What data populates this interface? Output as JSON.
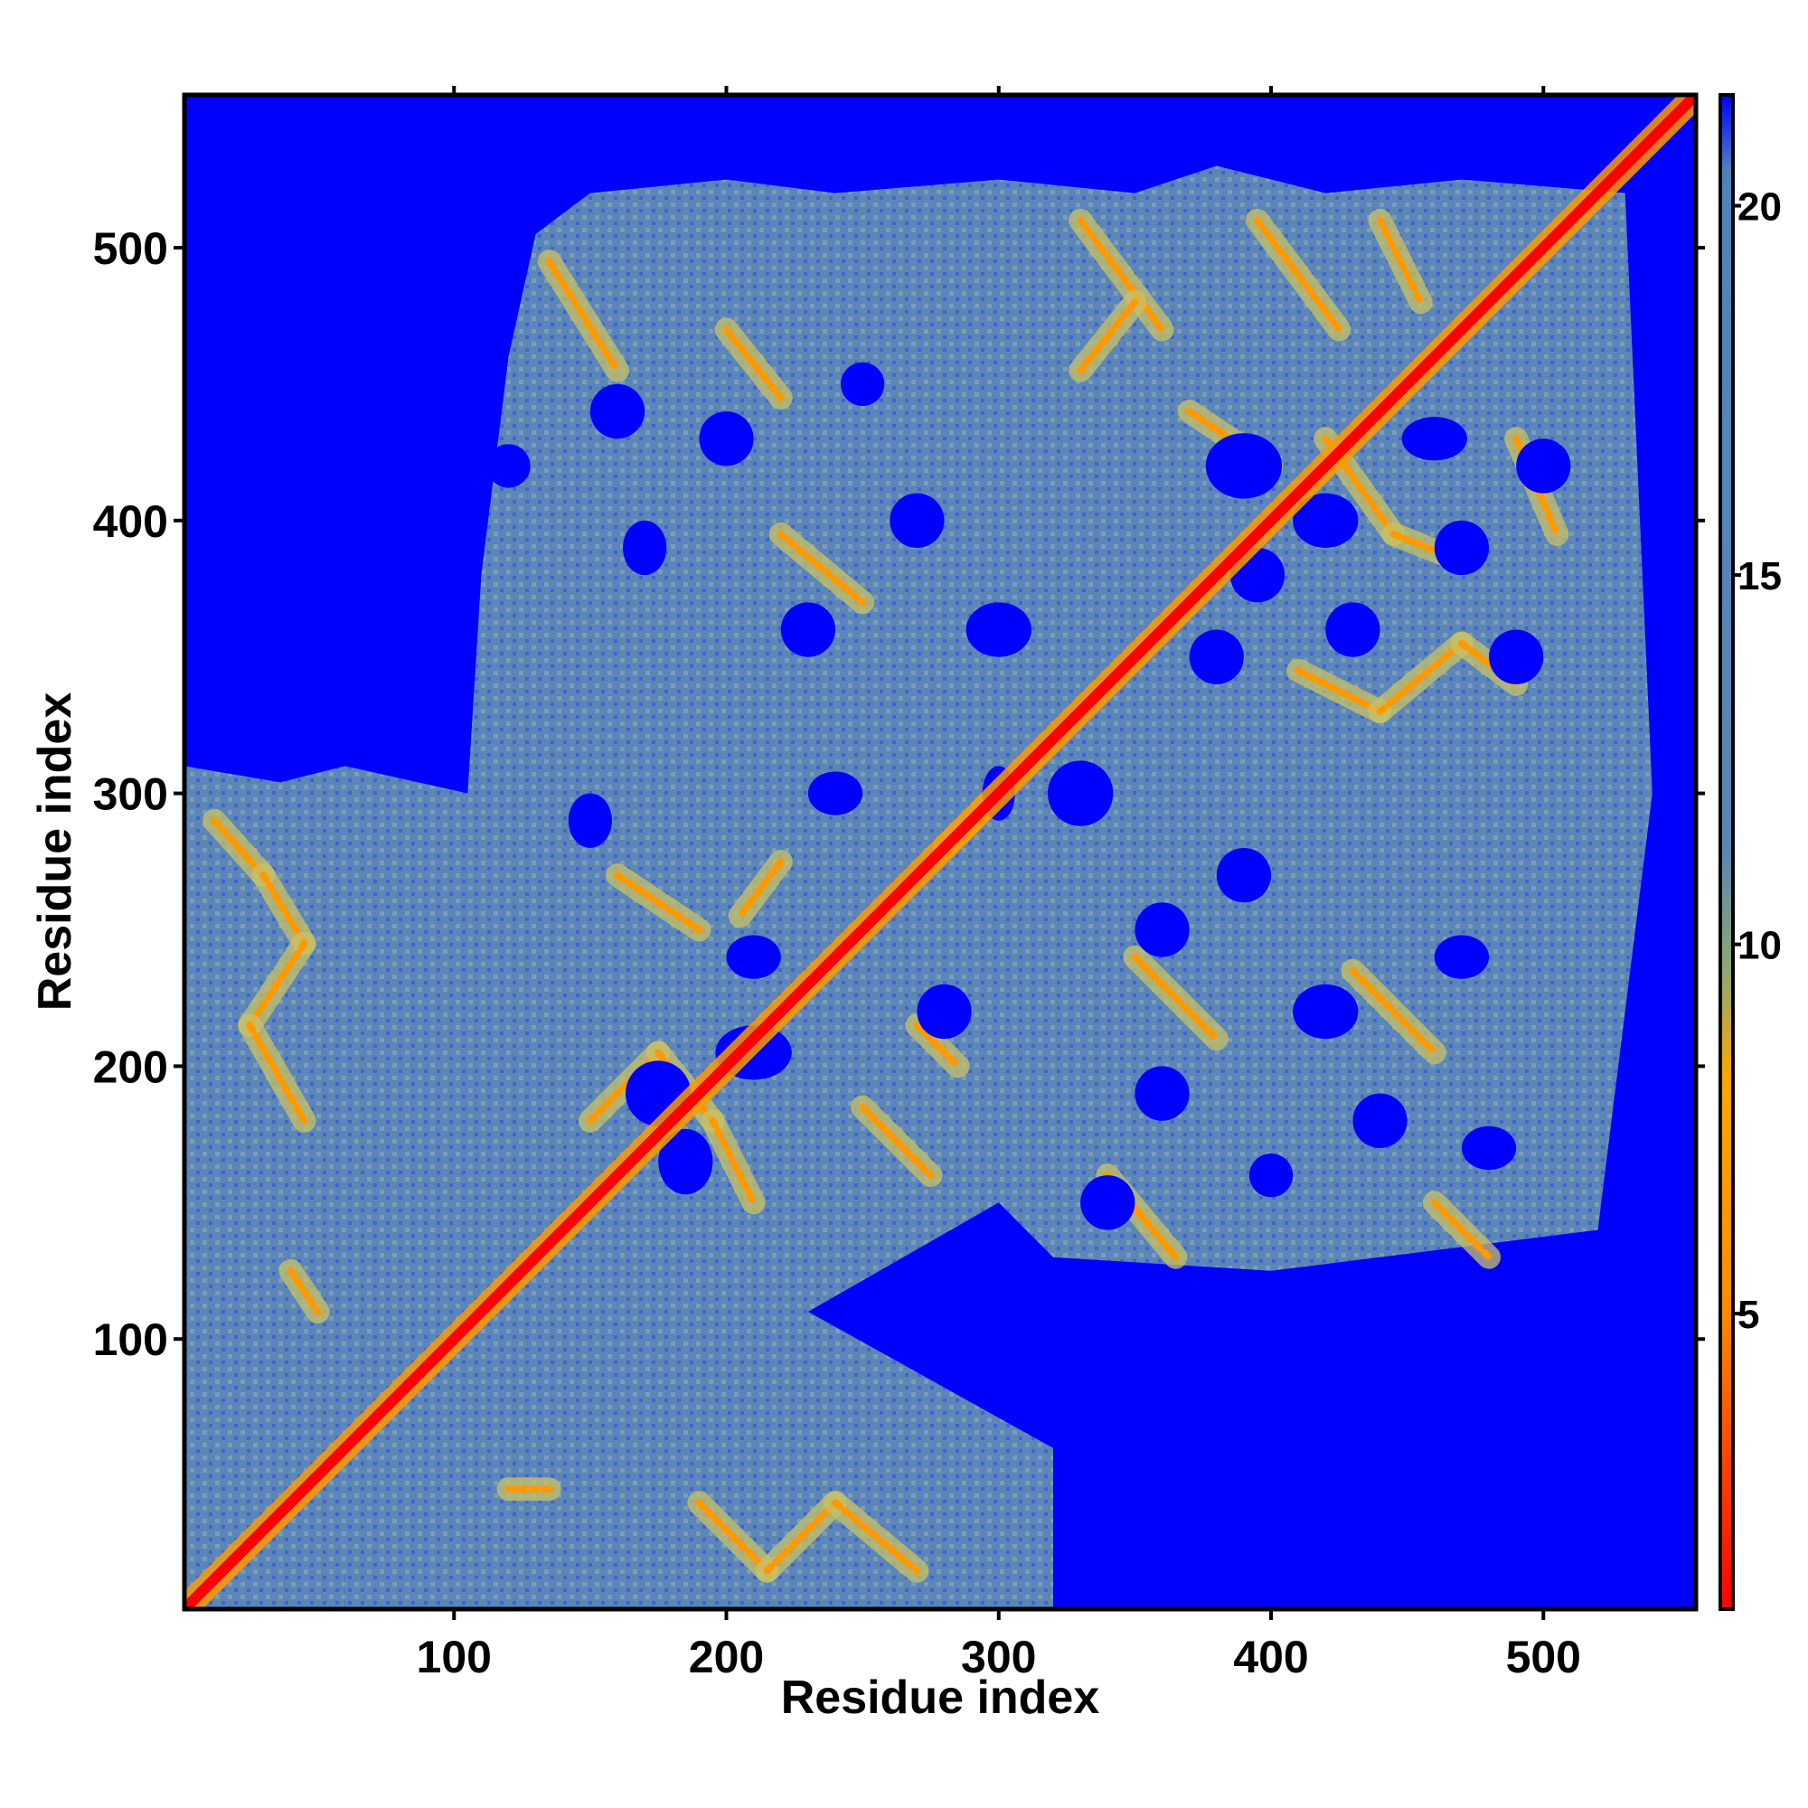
{
  "chart_data": {
    "type": "heatmap",
    "title": "",
    "xlabel": "Residue index",
    "ylabel": "Residue index",
    "xlim": [
      1,
      556
    ],
    "ylim": [
      1,
      556
    ],
    "x_ticks": [
      100,
      200,
      300,
      400,
      500
    ],
    "y_ticks": [
      100,
      200,
      300,
      400,
      500
    ],
    "colorbar": {
      "ticks": [
        5,
        10,
        15,
        20
      ],
      "range": [
        1,
        21.5
      ],
      "colors": [
        "#ff0000",
        "#ff8c00",
        "#ffa500",
        "#8fa870",
        "#5b86b5",
        "#4f82bd",
        "#0000ff"
      ],
      "stops": [
        0.0,
        0.2,
        0.35,
        0.42,
        0.5,
        0.95,
        1.0
      ]
    },
    "value_classes": [
      {
        "range": "<4",
        "color": "#ff0000"
      },
      {
        "range": "4-8",
        "color": "#ff9900"
      },
      {
        "range": "8-10",
        "color": "#c9c266"
      },
      {
        "range": "10-21",
        "color": "#5b86b5"
      },
      {
        "range": ">21",
        "color": "#0000ff"
      }
    ],
    "diagonal_color": "#ff0000",
    "background_color": "#0000ff",
    "contact_band_color": "#5b86b5",
    "secondary_structure_patterns": [
      {
        "x": [
          8,
          55
        ],
        "y": [
          8,
          300
        ],
        "kind": "zigzag-band"
      },
      {
        "x": [
          60,
          320
        ],
        "y": [
          1,
          60
        ],
        "kind": "zigzag-band"
      },
      {
        "x": [
          120,
          220
        ],
        "y": [
          130,
          210
        ],
        "kind": "hairpin"
      },
      {
        "x": [
          150,
          280
        ],
        "y": [
          240,
          300
        ],
        "kind": "hairpin"
      },
      {
        "x": [
          200,
          400
        ],
        "y": [
          300,
          520
        ],
        "kind": "network"
      },
      {
        "x": [
          330,
          540
        ],
        "y": [
          300,
          520
        ],
        "kind": "network"
      },
      {
        "x": [
          340,
          520
        ],
        "y": [
          130,
          300
        ],
        "kind": "network"
      }
    ]
  }
}
